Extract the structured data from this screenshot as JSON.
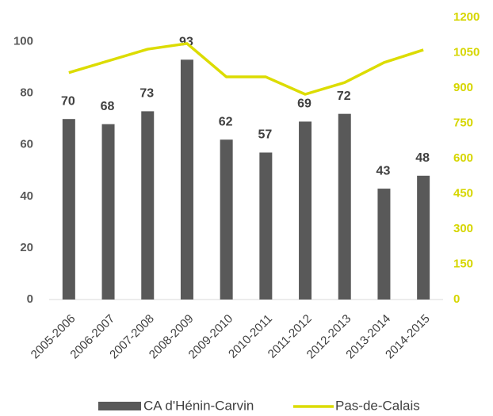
{
  "chart_data": {
    "type": "bar_line",
    "categories": [
      "2005-2006",
      "2006-2007",
      "2007-2008",
      "2008-2009",
      "2009-2010",
      "2010-2011",
      "2011-2012",
      "2012-2013",
      "2013-2014",
      "2014-2015"
    ],
    "series": [
      {
        "name": "CA d'Hénin-Carvin",
        "color": "#595959",
        "type": "bar",
        "values": [
          70,
          68,
          73,
          93,
          62,
          57,
          69,
          72,
          43,
          48
        ]
      },
      {
        "name": "Pas-de-Calais",
        "color": "#dcdc00",
        "type": "line",
        "axis": "y2",
        "values": [
          965,
          1015,
          1065,
          1089,
          947,
          947,
          873,
          923,
          1008,
          1062
        ]
      }
    ],
    "ylim": [
      0,
      110
    ],
    "yticks": [
      0,
      20,
      40,
      60,
      80,
      100
    ],
    "y2lim": [
      0,
      1200
    ],
    "y2ticks": [
      0,
      150,
      300,
      450,
      600,
      750,
      900,
      1050,
      1200
    ]
  }
}
